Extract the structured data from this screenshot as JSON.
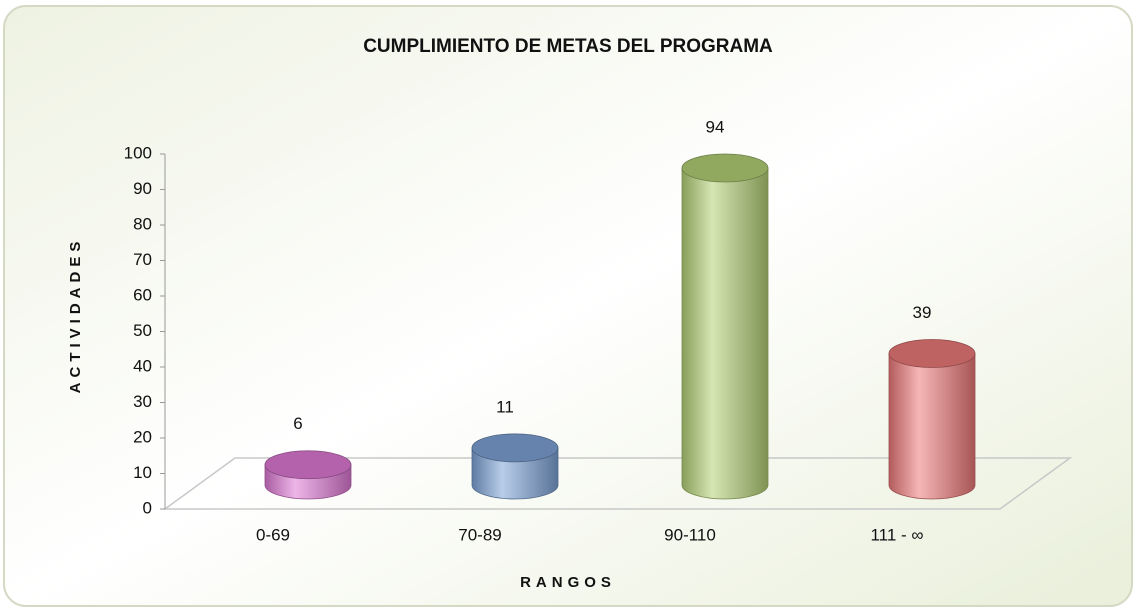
{
  "chart_data": {
    "type": "bar",
    "title": "CUMPLIMIENTO DE METAS DEL PROGRAMA",
    "x_label": "RANGOS",
    "y_label": "ACTIVIDADES",
    "categories": [
      "0-69",
      "70-89",
      "90-110",
      "111 - ∞"
    ],
    "values": [
      6,
      11,
      94,
      39
    ],
    "colors": [
      "#e07ad6",
      "#7ea4d8",
      "#b5d277",
      "#ef7a7a"
    ],
    "ylim": [
      0,
      100
    ],
    "yticks": [
      0,
      10,
      20,
      30,
      40,
      50,
      60,
      70,
      80,
      90,
      100
    ]
  }
}
